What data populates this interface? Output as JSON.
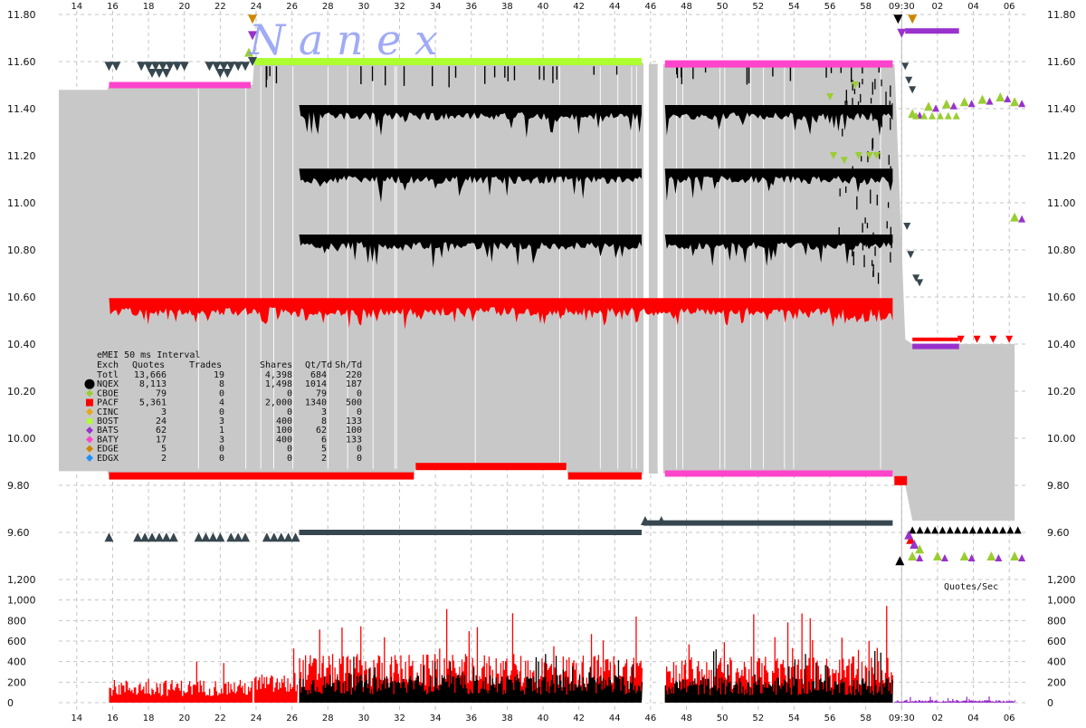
{
  "watermark": "N a n e x",
  "quotes_sec_label": "Quotes/Sec",
  "colors": {
    "NQEX": "#000000",
    "CBOE": "#9acd32",
    "PACF": "#ff0000",
    "CINC": "#e6a817",
    "BOST": "#adff2f",
    "BATS": "#9932cc",
    "BATY": "#ff44cc",
    "EDGE": "#cc8800",
    "EDGX": "#1e90ff",
    "nbbo_shade": "#c8c8c8",
    "grey_mark": "#37474f"
  },
  "stats_table": {
    "title": "eMEI 50 ms Interval",
    "headers": [
      "Exch",
      "Quotes",
      "Trades",
      "Shares",
      "Qt/Td",
      "Sh/Td"
    ],
    "rows": [
      {
        "exch": "Totl",
        "quotes": "13,666",
        "trades": "19",
        "shares": "4,398",
        "qt_td": "684",
        "sh_td": "220",
        "marker": "none"
      },
      {
        "exch": "NQEX",
        "quotes": "8,113",
        "trades": "8",
        "shares": "1,498",
        "qt_td": "1014",
        "sh_td": "187",
        "marker": "circle-big"
      },
      {
        "exch": "CBOE",
        "quotes": "79",
        "trades": "0",
        "shares": "0",
        "qt_td": "79",
        "sh_td": "0",
        "marker": "diamond"
      },
      {
        "exch": "PACF",
        "quotes": "5,361",
        "trades": "4",
        "shares": "2,000",
        "qt_td": "1340",
        "sh_td": "500",
        "marker": "cross"
      },
      {
        "exch": "CINC",
        "quotes": "3",
        "trades": "0",
        "shares": "0",
        "qt_td": "3",
        "sh_td": "0",
        "marker": "diamond"
      },
      {
        "exch": "BOST",
        "quotes": "24",
        "trades": "3",
        "shares": "400",
        "qt_td": "8",
        "sh_td": "133",
        "marker": "square"
      },
      {
        "exch": "BATS",
        "quotes": "62",
        "trades": "1",
        "shares": "100",
        "qt_td": "62",
        "sh_td": "100",
        "marker": "diamond"
      },
      {
        "exch": "BATY",
        "quotes": "17",
        "trades": "3",
        "shares": "400",
        "qt_td": "6",
        "sh_td": "133",
        "marker": "diamond"
      },
      {
        "exch": "EDGE",
        "quotes": "5",
        "trades": "0",
        "shares": "0",
        "qt_td": "5",
        "sh_td": "0",
        "marker": "diamond"
      },
      {
        "exch": "EDGX",
        "quotes": "2",
        "trades": "0",
        "shares": "0",
        "qt_td": "2",
        "sh_td": "0",
        "marker": "diamond"
      }
    ]
  },
  "chart_data": [
    {
      "type": "scatter",
      "panel": "price",
      "title": "",
      "xlabel": "",
      "ylabel": "",
      "x_tick_labels": [
        "14",
        "16",
        "18",
        "20",
        "22",
        "24",
        "26",
        "28",
        "30",
        "32",
        "34",
        "36",
        "38",
        "40",
        "42",
        "44",
        "46",
        "48",
        "50",
        "52",
        "54",
        "56",
        "58",
        "09:30",
        "02",
        "04",
        "06"
      ],
      "x_domain_note": "time 09:29:13 to 09:30:06, tick labels are seconds",
      "ylim": [
        9.5,
        11.8
      ],
      "y_tick_labels": [
        "11.80",
        "11.60",
        "11.40",
        "11.20",
        "11.00",
        "10.80",
        "10.60",
        "10.40",
        "10.20",
        "10.00",
        "9.80",
        "9.60"
      ],
      "y_ticks": [
        11.8,
        11.6,
        11.4,
        11.2,
        11.0,
        10.8,
        10.6,
        10.4,
        10.2,
        10.0,
        9.8,
        9.6
      ],
      "grid": true,
      "series": [
        {
          "exch": "BATY",
          "marker": "triangle-down",
          "side": "ask",
          "points": [
            [
              15.8,
              11.5
            ],
            [
              23.7,
              11.5
            ]
          ],
          "connected_run": true
        },
        {
          "exch": "BOST",
          "marker": "triangle-down",
          "side": "ask",
          "points": [
            [
              23.9,
              11.6
            ],
            [
              45.5,
              11.6
            ]
          ],
          "connected_run": true
        },
        {
          "exch": "BATY",
          "marker": "triangle-down",
          "side": "ask",
          "points": [
            [
              46.8,
              11.59
            ],
            [
              59.5,
              11.59
            ]
          ],
          "connected_run": true
        },
        {
          "exch": "PACF",
          "marker": "triangle-down",
          "side": "bid",
          "points": [
            [
              15.8,
              10.58
            ],
            [
              59.5,
              10.58
            ]
          ],
          "connected_run": true
        },
        {
          "exch": "PACF",
          "marker": "triangle-up",
          "side": "bid_low",
          "points": [
            [
              15.8,
              9.84
            ],
            [
              32.8,
              9.84
            ],
            [
              32.9,
              9.88
            ],
            [
              41.3,
              9.88
            ],
            [
              41.4,
              9.84
            ],
            [
              45.5,
              9.84
            ]
          ],
          "connected_run": true
        },
        {
          "exch": "BATY",
          "marker": "triangle-up",
          "side": "bid_low",
          "points": [
            [
              46.8,
              9.85
            ],
            [
              59.5,
              9.85
            ]
          ],
          "connected_run": true
        },
        {
          "exch": "NQEX",
          "marker": "triangle-up",
          "side": "bid_low",
          "points": [
            [
              26.4,
              9.6
            ],
            [
              45.5,
              9.6
            ],
            [
              45.6,
              9.64
            ],
            [
              59.5,
              9.64
            ]
          ],
          "connected_run": true
        },
        {
          "exch": "NQEX",
          "marker": "triangle-down",
          "side": "ask_levels",
          "levels": [
            11.4,
            11.13,
            10.85
          ],
          "x_range": [
            26.4,
            59.5
          ]
        },
        {
          "exch": "BATS",
          "marker": "triangle-down",
          "side": "ask",
          "points": [
            [
              60.2,
              11.73
            ],
            [
              63.2,
              11.73
            ]
          ],
          "connected_run": true
        },
        {
          "exch": "BATS",
          "marker": "triangle-up",
          "side": "bid",
          "points": [
            [
              60.6,
              10.39
            ],
            [
              63.2,
              10.39
            ]
          ],
          "connected_run": true
        },
        {
          "exch": "NQEX",
          "marker": "triangle-up",
          "side": "bid",
          "points": [
            [
              60.6,
              9.61
            ],
            [
              66.4,
              9.61
            ]
          ],
          "connected_run": true
        },
        {
          "exch": "PACF",
          "marker": "triangle-down",
          "side": "ask",
          "points": [
            [
              60.6,
              10.42
            ],
            [
              66.4,
              10.42
            ]
          ],
          "connected_run": true
        },
        {
          "exch": "CBOE",
          "marker": "triangle-up",
          "side": "ask",
          "points": [
            [
              60.6,
              11.38
            ],
            [
              61.5,
              11.41
            ],
            [
              62.5,
              11.42
            ],
            [
              63.5,
              11.43
            ],
            [
              64.5,
              11.44
            ],
            [
              65.5,
              11.45
            ],
            [
              66.3,
              11.43
            ],
            [
              66.3,
              10.94
            ]
          ],
          "connected_run": false
        },
        {
          "exch": "CBOE",
          "marker": "triangle-up",
          "side": "bid",
          "points": [
            [
              60.6,
              9.5
            ],
            [
              62.0,
              9.5
            ],
            [
              63.5,
              9.5
            ],
            [
              65.0,
              9.5
            ],
            [
              66.3,
              9.5
            ]
          ],
          "connected_run": false
        }
      ],
      "nbbo_band": [
        {
          "x": 13.0,
          "bid": 9.86,
          "ask": 11.48
        },
        {
          "x": 15.7,
          "bid": 9.86,
          "ask": 11.48
        },
        {
          "x": 15.8,
          "bid": 9.84,
          "ask": 11.5
        },
        {
          "x": 23.8,
          "bid": 9.84,
          "ask": 11.5
        },
        {
          "x": 23.9,
          "bid": 9.84,
          "ask": 11.6
        },
        {
          "x": 32.8,
          "bid": 9.84,
          "ask": 11.6
        },
        {
          "x": 32.9,
          "bid": 9.88,
          "ask": 11.6
        },
        {
          "x": 41.3,
          "bid": 9.88,
          "ask": 11.6
        },
        {
          "x": 41.4,
          "bid": 9.84,
          "ask": 11.6
        },
        {
          "x": 45.5,
          "bid": 9.84,
          "ask": 11.6
        },
        {
          "x": 45.6,
          "bid": 9.85,
          "ask": 11.59
        },
        {
          "x": 59.5,
          "bid": 9.85,
          "ask": 11.59
        },
        {
          "x": 59.6,
          "bid": 9.8,
          "ask": 11.59
        },
        {
          "x": 60.2,
          "bid": 9.8,
          "ask": 10.42
        },
        {
          "x": 60.6,
          "bid": 9.65,
          "ask": 10.4
        },
        {
          "x": 66.3,
          "bid": 9.65,
          "ask": 10.4
        }
      ],
      "gaps": [
        [
          45.6,
          45.9
        ],
        [
          46.4,
          46.7
        ]
      ]
    },
    {
      "type": "bar",
      "panel": "quotes_per_sec",
      "title": "",
      "ylabel": "",
      "ylim": [
        0,
        1200
      ],
      "y_tick_labels": [
        "1,200",
        "1,000",
        "800",
        "600",
        "400",
        "200",
        "0"
      ],
      "y_ticks": [
        1200,
        1000,
        800,
        600,
        400,
        200,
        0
      ],
      "segments": [
        {
          "x_range": [
            15.8,
            23.8
          ],
          "series": "PACF",
          "typical": 180,
          "peak": 420
        },
        {
          "x_range": [
            23.9,
            26.3
          ],
          "series": "PACF",
          "typical": 220,
          "peak": 550
        },
        {
          "x_range": [
            26.4,
            45.5
          ],
          "series": "PACF",
          "typical": 380,
          "peak": 920
        },
        {
          "x_range": [
            26.4,
            45.5
          ],
          "series": "NQEX",
          "typical": 220,
          "peak": 480
        },
        {
          "x_range": [
            46.8,
            59.5
          ],
          "series": "PACF",
          "typical": 360,
          "peak": 960
        },
        {
          "x_range": [
            46.8,
            59.5
          ],
          "series": "NQEX",
          "typical": 200,
          "peak": 520
        },
        {
          "x_range": [
            59.6,
            66.3
          ],
          "series": "BATS",
          "typical": 20,
          "peak": 80
        }
      ]
    }
  ]
}
